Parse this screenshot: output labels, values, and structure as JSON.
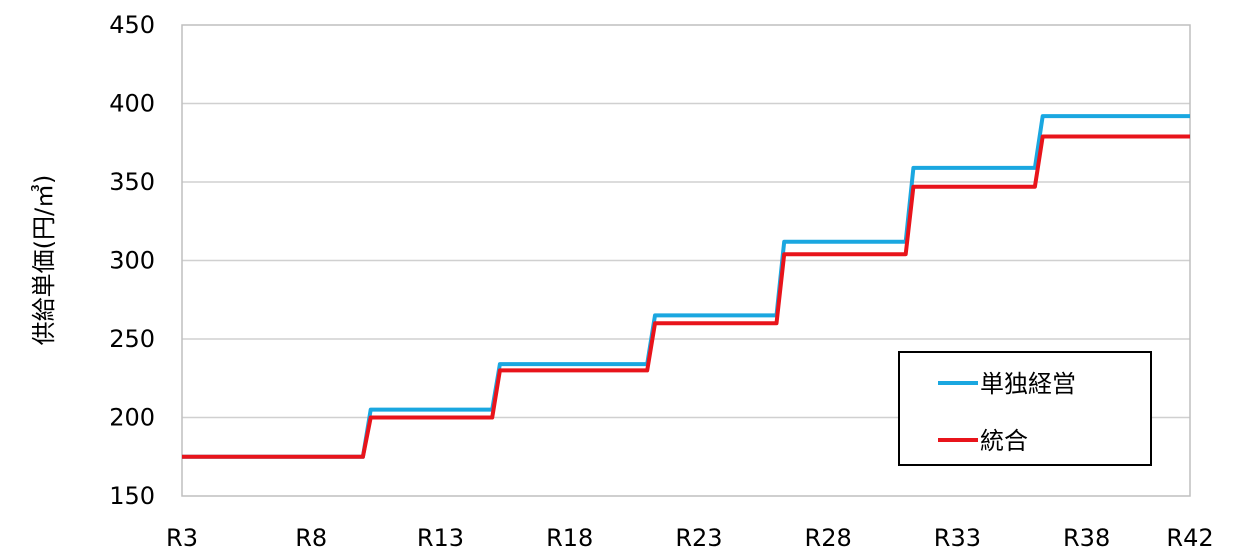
{
  "chart_data": {
    "type": "line",
    "step": true,
    "ylabel": "供給単価(円/㎥)",
    "xlabel": "",
    "ylim": [
      150,
      450
    ],
    "y_ticks": [
      150,
      200,
      250,
      300,
      350,
      400,
      450
    ],
    "x_start": 3,
    "x_end": 42,
    "x_tick_labels": [
      {
        "x": 3,
        "label": "R3"
      },
      {
        "x": 8,
        "label": "R8"
      },
      {
        "x": 13,
        "label": "R13"
      },
      {
        "x": 18,
        "label": "R18"
      },
      {
        "x": 23,
        "label": "R23"
      },
      {
        "x": 28,
        "label": "R28"
      },
      {
        "x": 33,
        "label": "R33"
      },
      {
        "x": 38,
        "label": "R38"
      },
      {
        "x": 42,
        "label": "R42"
      }
    ],
    "grid": "horizontal",
    "legend_position": "bottom-right",
    "series": [
      {
        "name": "単独経営",
        "color": "#1aa7e0",
        "points": [
          [
            3,
            175
          ],
          [
            10,
            175
          ],
          [
            10.3,
            205
          ],
          [
            15,
            205
          ],
          [
            15.3,
            234
          ],
          [
            21,
            234
          ],
          [
            21.3,
            265
          ],
          [
            26,
            265
          ],
          [
            26.3,
            312
          ],
          [
            31,
            312
          ],
          [
            31.3,
            359
          ],
          [
            36,
            359
          ],
          [
            36.3,
            392
          ],
          [
            42,
            392
          ]
        ]
      },
      {
        "name": "統合",
        "color": "#e8141b",
        "points": [
          [
            3,
            175
          ],
          [
            10,
            175
          ],
          [
            10.3,
            200
          ],
          [
            15,
            200
          ],
          [
            15.3,
            230
          ],
          [
            21,
            230
          ],
          [
            21.3,
            260
          ],
          [
            26,
            260
          ],
          [
            26.3,
            304
          ],
          [
            31,
            304
          ],
          [
            31.3,
            347
          ],
          [
            36,
            347
          ],
          [
            36.3,
            379
          ],
          [
            42,
            379
          ]
        ]
      }
    ]
  }
}
